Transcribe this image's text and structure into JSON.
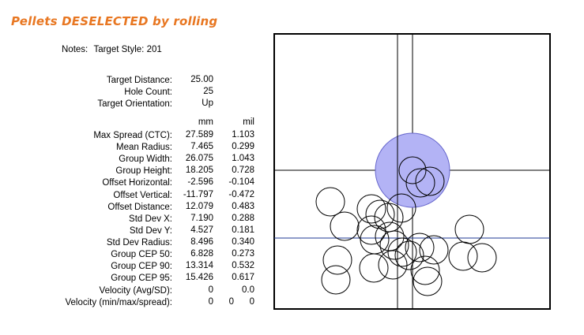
{
  "title": "Pellets DESELECTED by rolling",
  "notes": {
    "label": "Notes:",
    "value": "Target Style: 201"
  },
  "header_info": [
    {
      "label": "Target Distance:",
      "value": "25.00"
    },
    {
      "label": "Hole Count:",
      "value": "25"
    },
    {
      "label": "Target Orientation:",
      "value": "Up"
    }
  ],
  "units": {
    "mm": "mm",
    "mil": "mil"
  },
  "stats": [
    {
      "label": "Max Spread (CTC):",
      "mm": "27.589",
      "mil": "1.103"
    },
    {
      "label": "Mean Radius:",
      "mm": "7.465",
      "mil": "0.299"
    },
    {
      "label": "Group Width:",
      "mm": "26.075",
      "mil": "1.043"
    },
    {
      "label": "Group Height:",
      "mm": "18.205",
      "mil": "0.728"
    },
    {
      "label": "Offset Horizontal:",
      "mm": "-2.596",
      "mil": "-0.104"
    },
    {
      "label": "Offset Vertical:",
      "mm": "-11.797",
      "mil": "-0.472"
    },
    {
      "label": "Offset Distance:",
      "mm": "12.079",
      "mil": "0.483"
    },
    {
      "label": "Std Dev X:",
      "mm": "7.190",
      "mil": "0.288"
    },
    {
      "label": "Std Dev Y:",
      "mm": "4.527",
      "mil": "0.181"
    },
    {
      "label": "Std Dev Radius:",
      "mm": "8.496",
      "mil": "0.340"
    },
    {
      "label": "Group CEP 50:",
      "mm": "6.828",
      "mil": "0.273"
    },
    {
      "label": "Group CEP 90:",
      "mm": "13.314",
      "mil": "0.532"
    },
    {
      "label": "Group CEP 95:",
      "mm": "15.426",
      "mil": "0.617"
    }
  ],
  "velocity_avg": {
    "label": "Velocity (Avg/SD):",
    "values": [
      "0",
      "0.0"
    ]
  },
  "velocity_mms": {
    "label": "Velocity (min/max/spread):",
    "values": [
      "0",
      "0",
      "0"
    ]
  },
  "colors": {
    "title": "#e87722",
    "bull_fill": "#b3b3f5",
    "bull_stroke": "#6666cc",
    "group_center_line": "#1f3a93"
  }
}
